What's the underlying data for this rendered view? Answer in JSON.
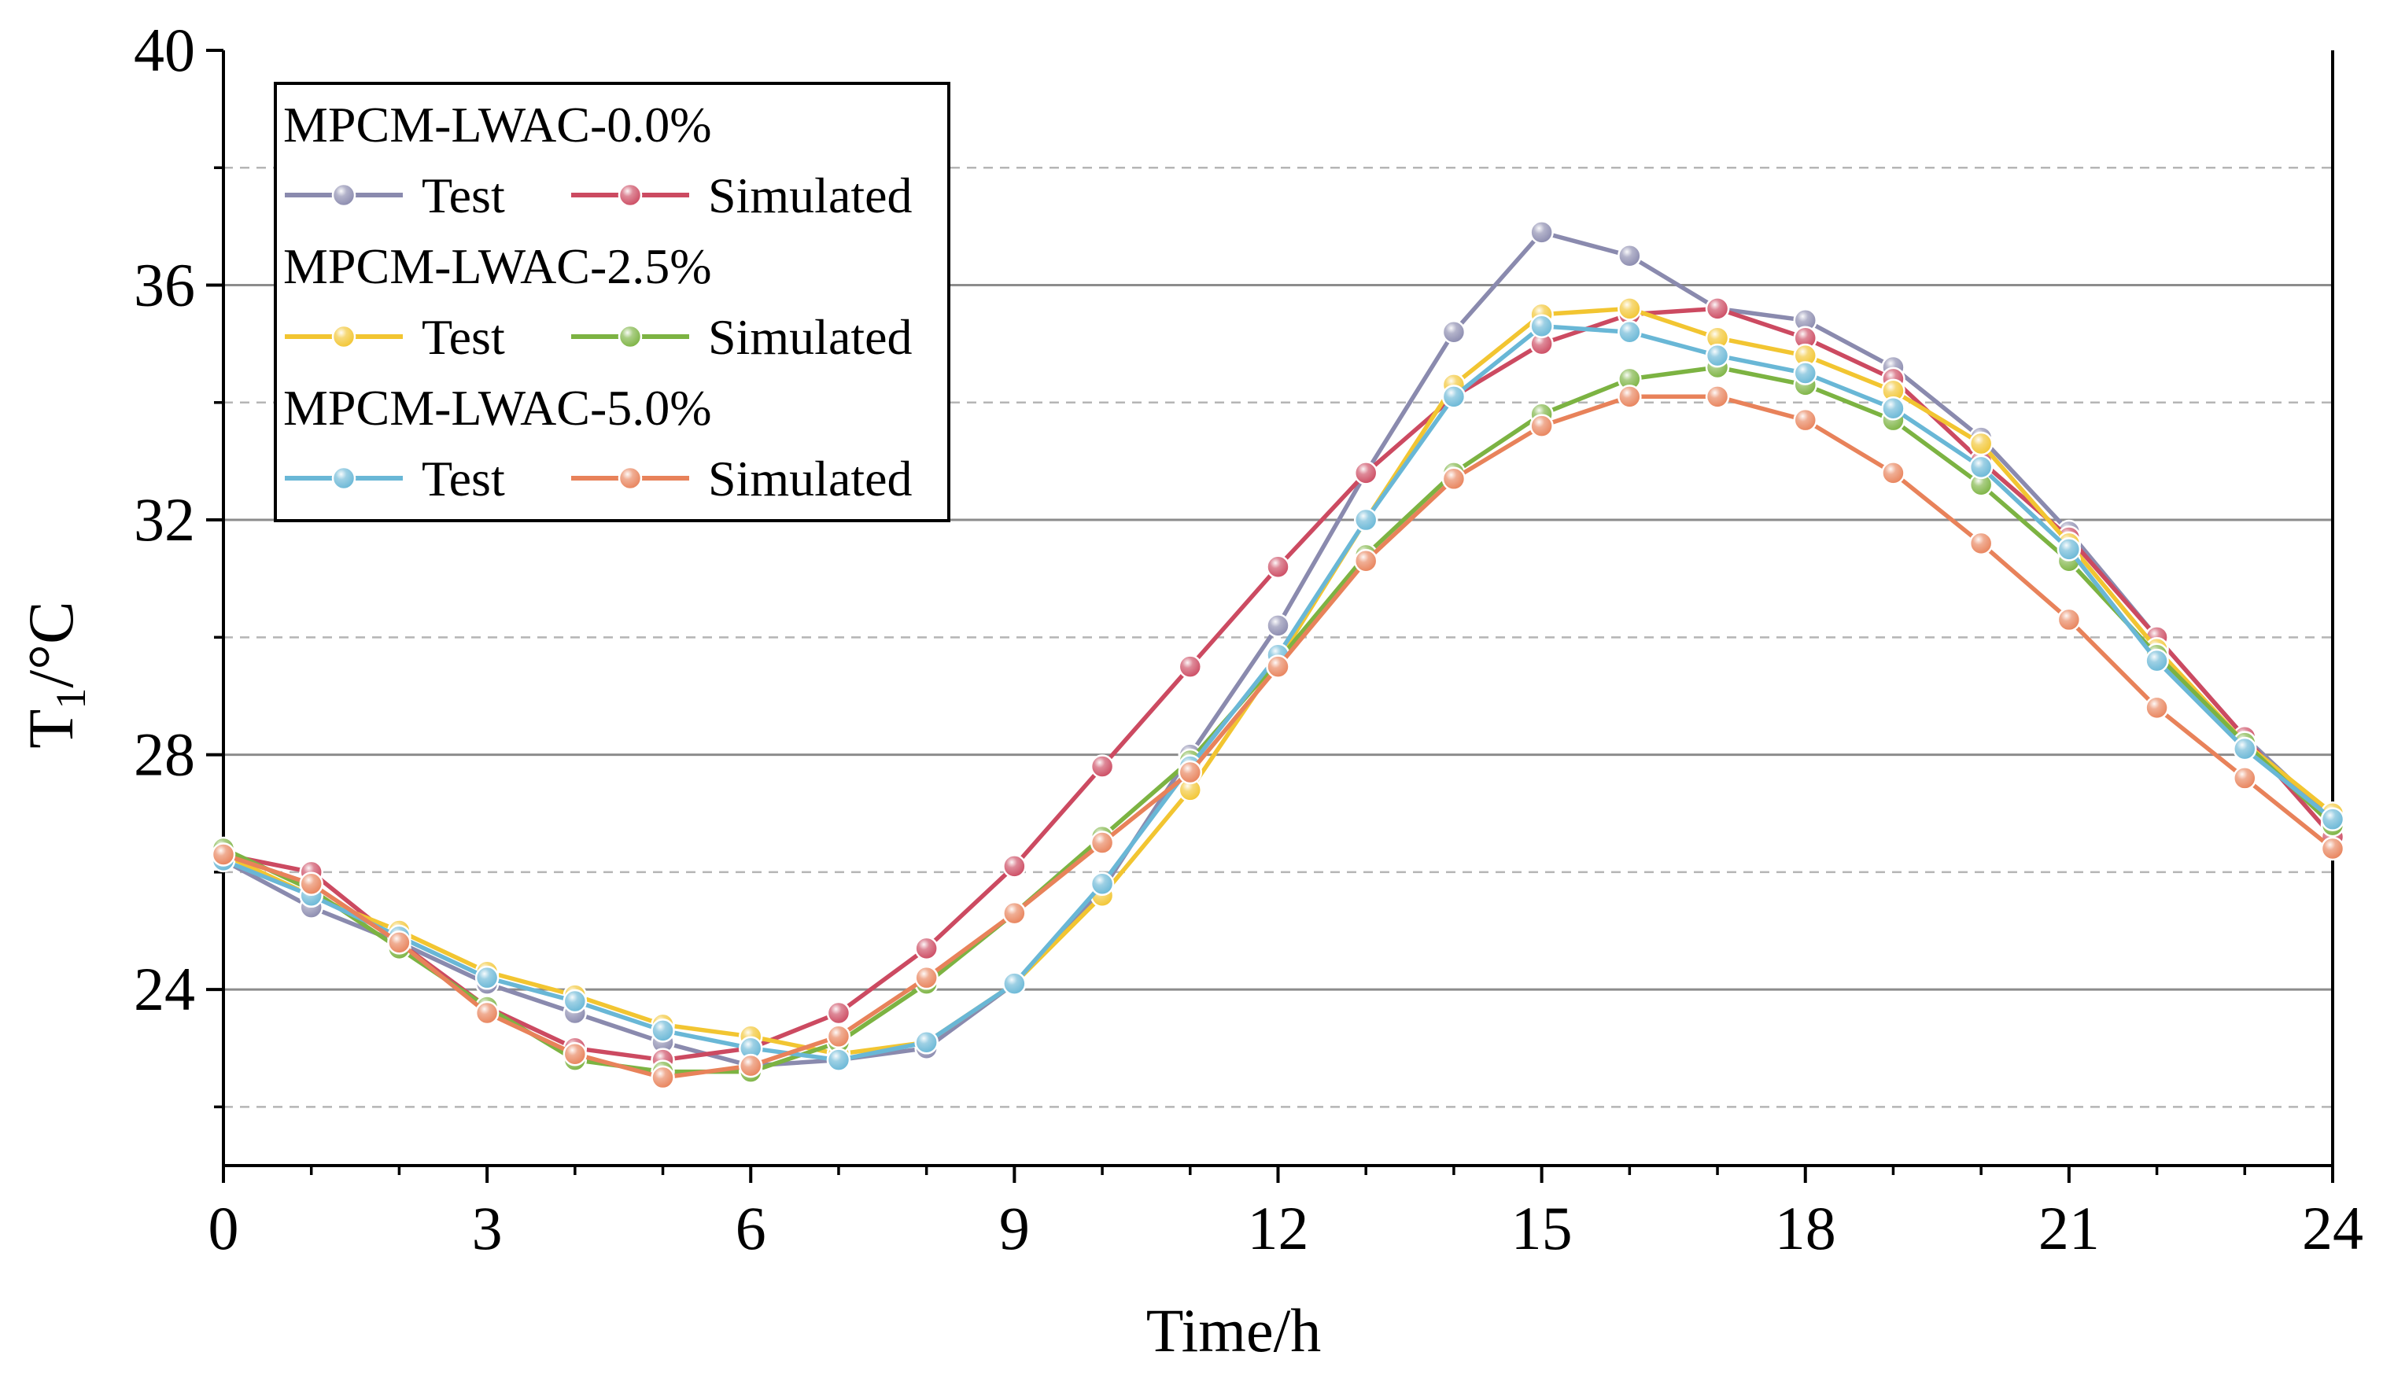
{
  "chart_data": {
    "type": "line",
    "title": "",
    "xlabel": "Time/h",
    "ylabel": {
      "main": "T",
      "sub": "1",
      "unit": "/°C"
    },
    "xlim": [
      0,
      24
    ],
    "ylim": [
      21,
      40
    ],
    "x_ticks": [
      0,
      3,
      6,
      9,
      12,
      15,
      18,
      21,
      24
    ],
    "x_minor_ticks": [
      1,
      2,
      4,
      5,
      7,
      8,
      10,
      11,
      13,
      14,
      16,
      17,
      19,
      20,
      22,
      23
    ],
    "y_ticks": [
      24,
      28,
      32,
      36,
      40
    ],
    "y_minor_grid": [
      22,
      26,
      30,
      34,
      38
    ],
    "grid": true,
    "legend_position": "top-left",
    "x": [
      0,
      1,
      2,
      3,
      4,
      5,
      6,
      7,
      8,
      9,
      10,
      11,
      12,
      13,
      14,
      15,
      16,
      17,
      18,
      19,
      20,
      21,
      22,
      23,
      24
    ],
    "legend_groups": [
      {
        "title": "MPCM-LWAC-0.0%",
        "series_names": [
          "Test",
          "Simulated"
        ],
        "series_index": [
          0,
          1
        ]
      },
      {
        "title": "MPCM-LWAC-2.5%",
        "series_names": [
          "Test",
          "Simulated"
        ],
        "series_index": [
          2,
          3
        ]
      },
      {
        "title": "MPCM-LWAC-5.0%",
        "series_names": [
          "Test",
          "Simulated"
        ],
        "series_index": [
          4,
          5
        ]
      }
    ],
    "series": [
      {
        "name": "Test",
        "group": "MPCM-LWAC-0.0%",
        "color": "#8a8aae",
        "values": [
          26.2,
          25.4,
          24.8,
          24.1,
          23.6,
          23.1,
          22.7,
          22.8,
          23.0,
          24.1,
          25.7,
          28.0,
          30.2,
          32.8,
          35.2,
          36.9,
          36.5,
          35.6,
          35.4,
          34.6,
          33.4,
          31.8,
          30.0,
          28.3,
          26.9
        ]
      },
      {
        "name": "Simulated",
        "group": "MPCM-LWAC-0.0%",
        "color": "#cc4a61",
        "values": [
          26.3,
          26.0,
          24.8,
          23.7,
          23.0,
          22.8,
          23.0,
          23.6,
          24.7,
          26.1,
          27.8,
          29.5,
          31.2,
          32.8,
          34.1,
          35.0,
          35.5,
          35.6,
          35.1,
          34.4,
          33.0,
          31.7,
          30.0,
          28.3,
          26.6
        ]
      },
      {
        "name": "Test",
        "group": "MPCM-LWAC-2.5%",
        "color": "#f2c531",
        "values": [
          26.3,
          25.6,
          25.0,
          24.3,
          23.9,
          23.4,
          23.2,
          22.9,
          23.1,
          24.1,
          25.6,
          27.4,
          29.6,
          32.0,
          34.3,
          35.5,
          35.6,
          35.1,
          34.8,
          34.2,
          33.3,
          31.6,
          29.8,
          28.2,
          27.0
        ]
      },
      {
        "name": "Simulated",
        "group": "MPCM-LWAC-2.5%",
        "color": "#7cb342",
        "values": [
          26.4,
          25.7,
          24.7,
          23.7,
          22.8,
          22.6,
          22.6,
          23.1,
          24.1,
          25.3,
          26.6,
          27.9,
          29.6,
          31.4,
          32.8,
          33.8,
          34.4,
          34.6,
          34.3,
          33.7,
          32.6,
          31.3,
          29.7,
          28.2,
          26.8
        ]
      },
      {
        "name": "Test",
        "group": "MPCM-LWAC-5.0%",
        "color": "#69b7d6",
        "values": [
          26.2,
          25.6,
          24.9,
          24.2,
          23.8,
          23.3,
          23.0,
          22.8,
          23.1,
          24.1,
          25.8,
          27.8,
          29.7,
          32.0,
          34.1,
          35.3,
          35.2,
          34.8,
          34.5,
          33.9,
          32.9,
          31.5,
          29.6,
          28.1,
          26.9
        ]
      },
      {
        "name": "Simulated",
        "group": "MPCM-LWAC-5.0%",
        "color": "#e8825a",
        "values": [
          26.3,
          25.8,
          24.8,
          23.6,
          22.9,
          22.5,
          22.7,
          23.2,
          24.2,
          25.3,
          26.5,
          27.7,
          29.5,
          31.3,
          32.7,
          33.6,
          34.1,
          34.1,
          33.7,
          32.8,
          31.6,
          30.3,
          28.8,
          27.6,
          26.4
        ]
      }
    ]
  }
}
